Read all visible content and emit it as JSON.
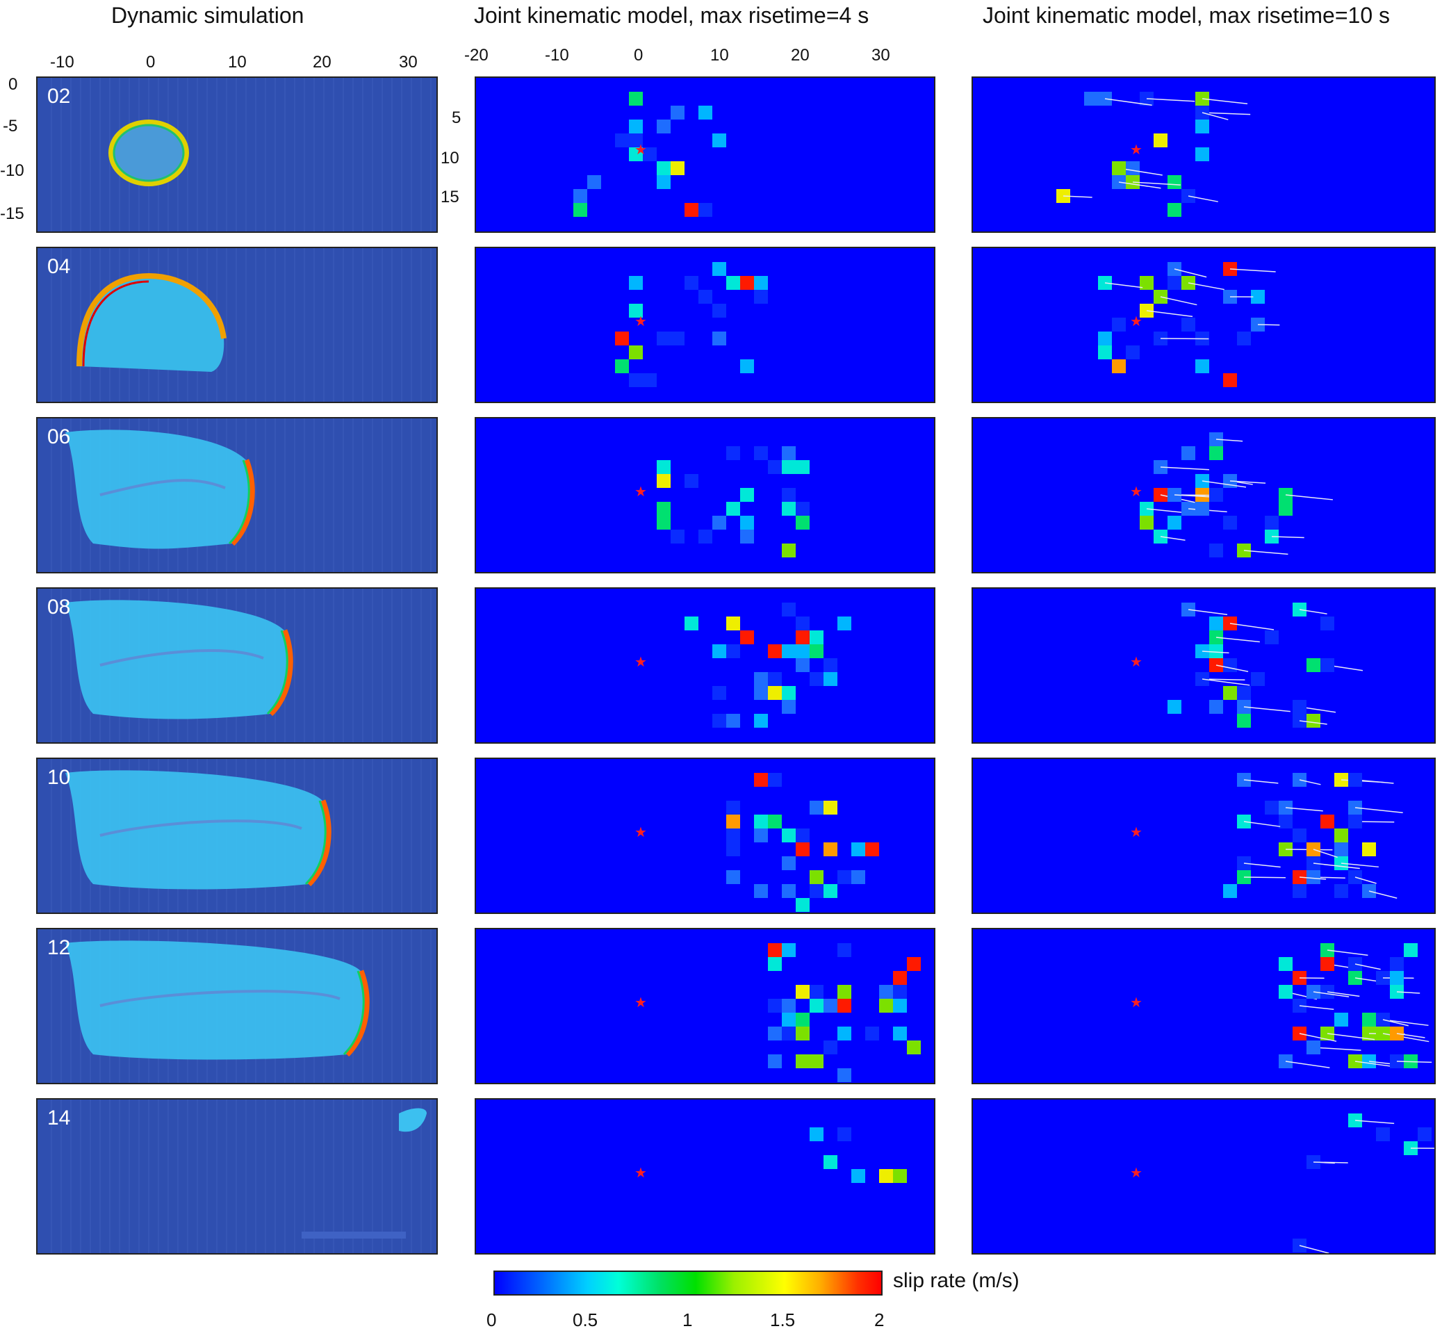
{
  "columns": {
    "dynamic_title": "Dynamic simulation",
    "kin4_title": "Joint kinematic model, max risetime=4 s",
    "kin10_title": "Joint kinematic model, max risetime=10 s"
  },
  "axes": {
    "dyn_x_ticks": [
      "-10",
      "0",
      "10",
      "20",
      "30"
    ],
    "dyn_y_ticks": [
      "0",
      "-5",
      "-10",
      "-15"
    ],
    "kin_x_ticks": [
      "-20",
      "-10",
      "0",
      "10",
      "20",
      "30"
    ],
    "kin_y_ticks": [
      "5",
      "10",
      "15"
    ]
  },
  "frames": [
    "02",
    "04",
    "06",
    "08",
    "10",
    "12",
    "14"
  ],
  "colorbar": {
    "label": "slip rate (m/s)",
    "ticks": [
      "0",
      "0.5",
      "1",
      "1.5",
      "2"
    ],
    "colors": [
      "#0000ff",
      "#00d0ff",
      "#00e000",
      "#ffff00",
      "#ff0000"
    ]
  },
  "colors": {
    "background_blue": "#0000ff",
    "dynamic_background": "#2f4fb0",
    "hypocenter": "#ff2020"
  }
}
